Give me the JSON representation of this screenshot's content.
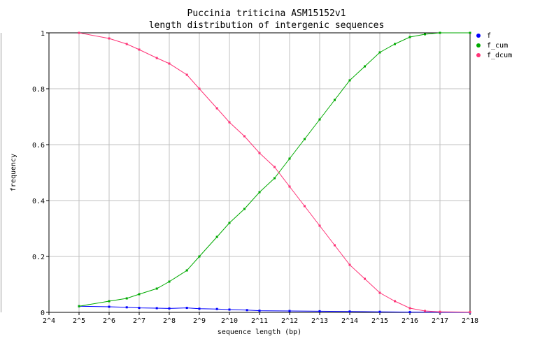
{
  "chart_data": {
    "type": "line",
    "title": "Puccinia triticina ASM15152v1",
    "subtitle": "length distribution of intergenic sequences",
    "xlabel": "sequence length (bp)",
    "ylabel": "frequency",
    "x_scale": "log2",
    "xlim": [
      16,
      262144
    ],
    "ylim": [
      0,
      1
    ],
    "x_ticks": [
      16,
      32,
      64,
      128,
      256,
      512,
      1024,
      2048,
      4096,
      8192,
      16384,
      32768,
      65536,
      131072,
      262144
    ],
    "x_tick_labels": [
      "2^4",
      "2^5",
      "2^6",
      "2^7",
      "2^8",
      "2^9",
      "2^10",
      "2^11",
      "2^12",
      "2^13",
      "2^14",
      "2^15",
      "2^16",
      "2^17",
      "2^18"
    ],
    "y_ticks": [
      0,
      0.2,
      0.4,
      0.6,
      0.8,
      1
    ],
    "y_tick_labels": [
      "0",
      "0.2",
      "0.4",
      "0.6",
      "0.8",
      "1"
    ],
    "grid": true,
    "legend_position": "right",
    "series": [
      {
        "name": "f",
        "color": "#0000ff",
        "x": [
          32,
          64,
          96,
          128,
          192,
          256,
          384,
          512,
          768,
          1024,
          1536,
          2048,
          4096,
          8192,
          16384,
          32768,
          65536,
          131072,
          262144
        ],
        "y": [
          0.022,
          0.02,
          0.018,
          0.016,
          0.015,
          0.014,
          0.016,
          0.013,
          0.012,
          0.01,
          0.008,
          0.006,
          0.005,
          0.004,
          0.003,
          0.002,
          0.001,
          0.0005,
          0.0002
        ]
      },
      {
        "name": "f_cum",
        "color": "#00aa00",
        "x": [
          32,
          64,
          96,
          128,
          192,
          256,
          384,
          512,
          768,
          1024,
          1448,
          2048,
          2896,
          4096,
          5793,
          8192,
          11585,
          16384,
          23170,
          32768,
          46341,
          65536,
          92682,
          131072,
          262144
        ],
        "y": [
          0.022,
          0.04,
          0.05,
          0.065,
          0.085,
          0.11,
          0.15,
          0.2,
          0.27,
          0.32,
          0.37,
          0.43,
          0.48,
          0.55,
          0.62,
          0.69,
          0.76,
          0.83,
          0.88,
          0.93,
          0.96,
          0.985,
          0.995,
          1.0,
          1.0
        ]
      },
      {
        "name": "f_dcum",
        "color": "#ff3377",
        "x": [
          32,
          64,
          96,
          128,
          192,
          256,
          384,
          512,
          768,
          1024,
          1448,
          2048,
          2896,
          4096,
          5793,
          8192,
          11585,
          16384,
          23170,
          32768,
          46341,
          65536,
          92682,
          131072,
          262144
        ],
        "y": [
          1.0,
          0.98,
          0.96,
          0.94,
          0.91,
          0.89,
          0.85,
          0.8,
          0.73,
          0.68,
          0.63,
          0.57,
          0.52,
          0.45,
          0.38,
          0.31,
          0.24,
          0.17,
          0.12,
          0.07,
          0.04,
          0.015,
          0.005,
          0.002,
          0.001
        ]
      }
    ]
  }
}
